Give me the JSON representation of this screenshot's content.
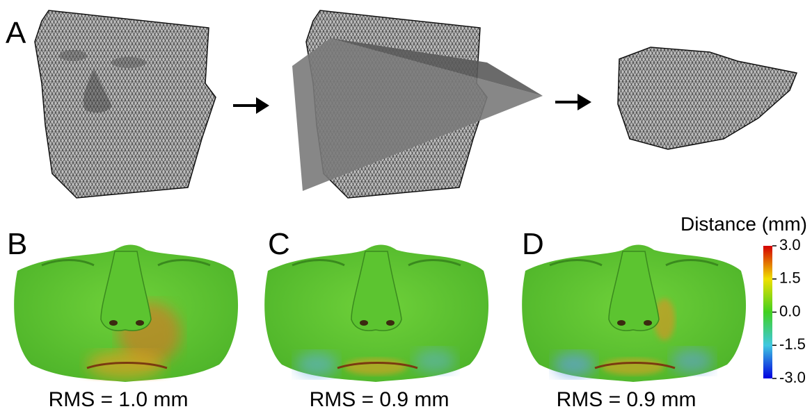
{
  "panels": [
    {
      "label": "A"
    },
    {
      "label": "B",
      "caption": "RMS = 1.0 mm"
    },
    {
      "label": "C",
      "caption": "RMS = 0.9 mm"
    },
    {
      "label": "D",
      "caption": "RMS = 0.9 mm"
    }
  ],
  "colorbar": {
    "title": "Distance (mm)",
    "ticks": [
      {
        "value": 3,
        "label": "3.0"
      },
      {
        "value": 1.5,
        "label": "1.5"
      },
      {
        "value": 0,
        "label": "0.0"
      },
      {
        "value": -1.5,
        "label": "-1.5"
      },
      {
        "value": -3,
        "label": "-3.0"
      }
    ]
  }
}
